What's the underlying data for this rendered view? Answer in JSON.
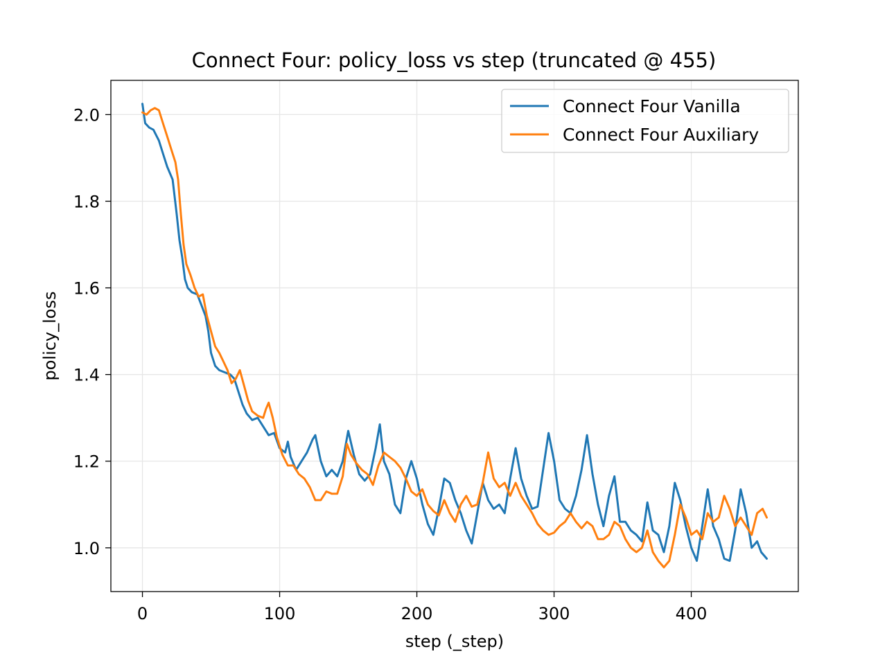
{
  "chart_data": {
    "type": "line",
    "title": "Connect Four: policy_loss vs step (truncated @ 455)",
    "xlabel": "step (_step)",
    "ylabel": "policy_loss",
    "xlim": [
      -23,
      478
    ],
    "ylim": [
      0.899,
      2.079
    ],
    "xticks": [
      0,
      100,
      200,
      300,
      400
    ],
    "yticks": [
      1.0,
      1.2,
      1.4,
      1.6,
      1.8,
      2.0
    ],
    "grid": true,
    "legend_position": "top-right",
    "series": [
      {
        "name": "Connect Four Vanilla",
        "color": "#1f77b4",
        "points": [
          [
            0,
            2.025
          ],
          [
            2,
            1.98
          ],
          [
            5,
            1.97
          ],
          [
            8,
            1.965
          ],
          [
            12,
            1.94
          ],
          [
            15,
            1.91
          ],
          [
            18,
            1.88
          ],
          [
            22,
            1.85
          ],
          [
            25,
            1.77
          ],
          [
            27,
            1.71
          ],
          [
            29,
            1.67
          ],
          [
            31,
            1.62
          ],
          [
            33,
            1.6
          ],
          [
            36,
            1.59
          ],
          [
            40,
            1.585
          ],
          [
            43,
            1.56
          ],
          [
            46,
            1.535
          ],
          [
            48,
            1.5
          ],
          [
            50,
            1.45
          ],
          [
            53,
            1.42
          ],
          [
            56,
            1.41
          ],
          [
            60,
            1.405
          ],
          [
            64,
            1.4
          ],
          [
            67,
            1.39
          ],
          [
            70,
            1.36
          ],
          [
            73,
            1.33
          ],
          [
            76,
            1.31
          ],
          [
            80,
            1.295
          ],
          [
            84,
            1.3
          ],
          [
            88,
            1.28
          ],
          [
            92,
            1.26
          ],
          [
            96,
            1.265
          ],
          [
            100,
            1.23
          ],
          [
            104,
            1.22
          ],
          [
            106,
            1.245
          ],
          [
            108,
            1.21
          ],
          [
            112,
            1.18
          ],
          [
            116,
            1.2
          ],
          [
            120,
            1.22
          ],
          [
            124,
            1.25
          ],
          [
            126,
            1.26
          ],
          [
            130,
            1.2
          ],
          [
            134,
            1.165
          ],
          [
            138,
            1.18
          ],
          [
            142,
            1.165
          ],
          [
            146,
            1.2
          ],
          [
            150,
            1.27
          ],
          [
            154,
            1.215
          ],
          [
            158,
            1.17
          ],
          [
            162,
            1.155
          ],
          [
            166,
            1.17
          ],
          [
            170,
            1.23
          ],
          [
            173,
            1.285
          ],
          [
            176,
            1.2
          ],
          [
            180,
            1.17
          ],
          [
            184,
            1.1
          ],
          [
            188,
            1.08
          ],
          [
            192,
            1.16
          ],
          [
            196,
            1.2
          ],
          [
            200,
            1.16
          ],
          [
            204,
            1.1
          ],
          [
            208,
            1.055
          ],
          [
            212,
            1.03
          ],
          [
            216,
            1.09
          ],
          [
            220,
            1.16
          ],
          [
            224,
            1.15
          ],
          [
            228,
            1.11
          ],
          [
            232,
            1.08
          ],
          [
            236,
            1.04
          ],
          [
            240,
            1.01
          ],
          [
            244,
            1.08
          ],
          [
            248,
            1.15
          ],
          [
            252,
            1.11
          ],
          [
            256,
            1.09
          ],
          [
            260,
            1.1
          ],
          [
            264,
            1.08
          ],
          [
            268,
            1.16
          ],
          [
            272,
            1.23
          ],
          [
            276,
            1.16
          ],
          [
            280,
            1.12
          ],
          [
            284,
            1.09
          ],
          [
            288,
            1.095
          ],
          [
            292,
            1.18
          ],
          [
            296,
            1.265
          ],
          [
            300,
            1.2
          ],
          [
            304,
            1.11
          ],
          [
            308,
            1.09
          ],
          [
            312,
            1.08
          ],
          [
            316,
            1.12
          ],
          [
            320,
            1.18
          ],
          [
            324,
            1.26
          ],
          [
            328,
            1.17
          ],
          [
            332,
            1.1
          ],
          [
            336,
            1.05
          ],
          [
            340,
            1.12
          ],
          [
            344,
            1.165
          ],
          [
            348,
            1.06
          ],
          [
            352,
            1.06
          ],
          [
            356,
            1.04
          ],
          [
            360,
            1.03
          ],
          [
            364,
            1.015
          ],
          [
            368,
            1.105
          ],
          [
            372,
            1.04
          ],
          [
            376,
            1.03
          ],
          [
            380,
            0.99
          ],
          [
            384,
            1.05
          ],
          [
            388,
            1.15
          ],
          [
            392,
            1.11
          ],
          [
            396,
            1.05
          ],
          [
            400,
            1.0
          ],
          [
            404,
            0.97
          ],
          [
            408,
            1.05
          ],
          [
            412,
            1.135
          ],
          [
            416,
            1.05
          ],
          [
            420,
            1.02
          ],
          [
            424,
            0.975
          ],
          [
            428,
            0.97
          ],
          [
            432,
            1.04
          ],
          [
            436,
            1.135
          ],
          [
            440,
            1.08
          ],
          [
            444,
            1.0
          ],
          [
            448,
            1.015
          ],
          [
            451,
            0.99
          ],
          [
            455,
            0.975
          ]
        ]
      },
      {
        "name": "Connect Four Auxiliary",
        "color": "#ff7f0e",
        "points": [
          [
            0,
            2.005
          ],
          [
            3,
            2.0
          ],
          [
            6,
            2.01
          ],
          [
            9,
            2.015
          ],
          [
            12,
            2.01
          ],
          [
            15,
            1.98
          ],
          [
            18,
            1.95
          ],
          [
            21,
            1.92
          ],
          [
            24,
            1.89
          ],
          [
            26,
            1.85
          ],
          [
            28,
            1.77
          ],
          [
            30,
            1.7
          ],
          [
            32,
            1.655
          ],
          [
            35,
            1.63
          ],
          [
            38,
            1.6
          ],
          [
            41,
            1.58
          ],
          [
            44,
            1.585
          ],
          [
            47,
            1.535
          ],
          [
            50,
            1.5
          ],
          [
            53,
            1.465
          ],
          [
            56,
            1.45
          ],
          [
            59,
            1.43
          ],
          [
            62,
            1.41
          ],
          [
            65,
            1.38
          ],
          [
            68,
            1.39
          ],
          [
            71,
            1.41
          ],
          [
            74,
            1.375
          ],
          [
            77,
            1.34
          ],
          [
            80,
            1.315
          ],
          [
            84,
            1.305
          ],
          [
            88,
            1.3
          ],
          [
            90,
            1.32
          ],
          [
            92,
            1.335
          ],
          [
            95,
            1.3
          ],
          [
            98,
            1.255
          ],
          [
            102,
            1.215
          ],
          [
            106,
            1.19
          ],
          [
            110,
            1.19
          ],
          [
            114,
            1.17
          ],
          [
            118,
            1.16
          ],
          [
            122,
            1.14
          ],
          [
            126,
            1.11
          ],
          [
            130,
            1.11
          ],
          [
            134,
            1.13
          ],
          [
            138,
            1.125
          ],
          [
            142,
            1.125
          ],
          [
            146,
            1.165
          ],
          [
            149,
            1.24
          ],
          [
            152,
            1.215
          ],
          [
            156,
            1.195
          ],
          [
            160,
            1.18
          ],
          [
            164,
            1.17
          ],
          [
            168,
            1.145
          ],
          [
            172,
            1.19
          ],
          [
            176,
            1.22
          ],
          [
            180,
            1.21
          ],
          [
            184,
            1.2
          ],
          [
            188,
            1.185
          ],
          [
            192,
            1.16
          ],
          [
            196,
            1.13
          ],
          [
            200,
            1.12
          ],
          [
            204,
            1.135
          ],
          [
            208,
            1.1
          ],
          [
            212,
            1.085
          ],
          [
            216,
            1.075
          ],
          [
            220,
            1.11
          ],
          [
            224,
            1.08
          ],
          [
            228,
            1.06
          ],
          [
            232,
            1.1
          ],
          [
            236,
            1.12
          ],
          [
            240,
            1.095
          ],
          [
            244,
            1.1
          ],
          [
            248,
            1.15
          ],
          [
            252,
            1.22
          ],
          [
            256,
            1.16
          ],
          [
            260,
            1.14
          ],
          [
            264,
            1.15
          ],
          [
            268,
            1.12
          ],
          [
            272,
            1.15
          ],
          [
            276,
            1.12
          ],
          [
            280,
            1.1
          ],
          [
            284,
            1.08
          ],
          [
            288,
            1.055
          ],
          [
            292,
            1.04
          ],
          [
            296,
            1.03
          ],
          [
            300,
            1.035
          ],
          [
            304,
            1.05
          ],
          [
            308,
            1.06
          ],
          [
            312,
            1.08
          ],
          [
            316,
            1.06
          ],
          [
            320,
            1.045
          ],
          [
            324,
            1.06
          ],
          [
            328,
            1.05
          ],
          [
            332,
            1.02
          ],
          [
            336,
            1.02
          ],
          [
            340,
            1.03
          ],
          [
            344,
            1.06
          ],
          [
            348,
            1.05
          ],
          [
            352,
            1.02
          ],
          [
            356,
            1.0
          ],
          [
            360,
            0.99
          ],
          [
            364,
            1.0
          ],
          [
            368,
            1.04
          ],
          [
            372,
            0.99
          ],
          [
            376,
            0.97
          ],
          [
            380,
            0.955
          ],
          [
            384,
            0.97
          ],
          [
            388,
            1.03
          ],
          [
            392,
            1.1
          ],
          [
            396,
            1.07
          ],
          [
            400,
            1.03
          ],
          [
            404,
            1.04
          ],
          [
            408,
            1.02
          ],
          [
            412,
            1.08
          ],
          [
            416,
            1.06
          ],
          [
            420,
            1.07
          ],
          [
            424,
            1.12
          ],
          [
            428,
            1.09
          ],
          [
            432,
            1.05
          ],
          [
            436,
            1.07
          ],
          [
            440,
            1.05
          ],
          [
            444,
            1.03
          ],
          [
            448,
            1.08
          ],
          [
            452,
            1.09
          ],
          [
            455,
            1.07
          ]
        ]
      }
    ]
  }
}
